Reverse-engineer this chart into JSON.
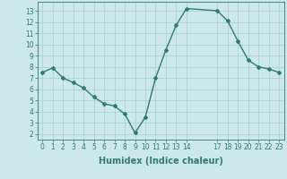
{
  "x": [
    0,
    1,
    2,
    3,
    4,
    5,
    6,
    7,
    8,
    9,
    10,
    11,
    12,
    13,
    14,
    17,
    18,
    19,
    20,
    21,
    22,
    23
  ],
  "y": [
    7.5,
    7.9,
    7.0,
    6.6,
    6.1,
    5.3,
    4.7,
    4.5,
    3.8,
    2.1,
    3.5,
    7.0,
    9.5,
    11.7,
    13.2,
    13.0,
    12.1,
    10.3,
    8.6,
    8.0,
    7.8,
    7.5
  ],
  "line_color": "#2e7d6e",
  "marker": "D",
  "marker_size": 2.0,
  "bg_color": "#cce8e8",
  "grid_color": "#aacece",
  "tick_color": "#2e7d6e",
  "xlabel": "Humidex (Indice chaleur)",
  "xlabel_fontsize": 7,
  "ylim": [
    1.5,
    13.8
  ],
  "xlim": [
    -0.5,
    23.5
  ],
  "yticks": [
    2,
    3,
    4,
    5,
    6,
    7,
    8,
    9,
    10,
    11,
    12,
    13
  ],
  "xticks": [
    0,
    1,
    2,
    3,
    4,
    5,
    6,
    7,
    8,
    9,
    10,
    11,
    12,
    13,
    14,
    17,
    18,
    19,
    20,
    21,
    22,
    23
  ],
  "tick_fontsize": 5.5,
  "line_width": 1.0
}
